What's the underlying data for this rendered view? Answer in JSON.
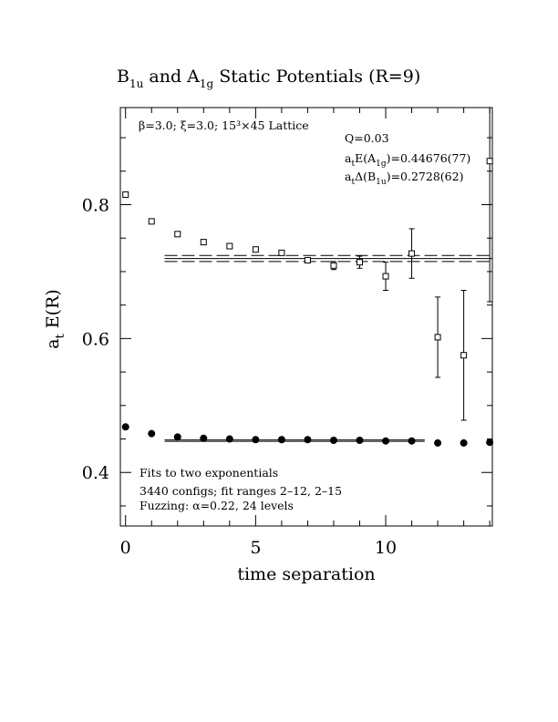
{
  "chart_data": {
    "type": "scatter",
    "title": {
      "main1": "B",
      "sub1": "1u",
      "main2": " and A",
      "sub2": "1g",
      "main3": " Static Potentials (R=9)"
    },
    "xlabel": "time separation",
    "ylabel": {
      "main": "a",
      "sub": "t",
      "rest": " E(R)"
    },
    "xlim": [
      -0.2,
      14.1
    ],
    "ylim": [
      0.32,
      0.945
    ],
    "x_ticks": [
      0,
      5,
      10
    ],
    "y_ticks": [
      0.4,
      0.6,
      0.8
    ],
    "annotations": {
      "lattice": "β=3.0; ξ=3.0; 15³×45 Lattice",
      "q": "Q=0.03",
      "energy_a": "a",
      "energy_sub_t": "t",
      "energy_mid": "E(A",
      "energy_sub_1g": "1g",
      "energy_val": ")=0.44676(77)",
      "delta_a": "a",
      "delta_sub_t": "t",
      "delta_mid": "Δ(B",
      "delta_sub_1u": "1u",
      "delta_val": ")=0.2728(62)",
      "fits": "Fits to two exponentials",
      "configs": "3440 configs; fit ranges 2–12, 2–15",
      "fuzzing": "Fuzzing: α=0.22, 24 levels"
    },
    "series": [
      {
        "marker": "open-square",
        "points": [
          {
            "x": 0,
            "y": 0.815,
            "err": 0.002
          },
          {
            "x": 1,
            "y": 0.775,
            "err": 0.002
          },
          {
            "x": 2,
            "y": 0.756,
            "err": 0.002
          },
          {
            "x": 3,
            "y": 0.744,
            "err": 0.002
          },
          {
            "x": 4,
            "y": 0.738,
            "err": 0.003
          },
          {
            "x": 5,
            "y": 0.733,
            "err": 0.003
          },
          {
            "x": 6,
            "y": 0.728,
            "err": 0.003
          },
          {
            "x": 7,
            "y": 0.717,
            "err": 0.004
          },
          {
            "x": 8,
            "y": 0.709,
            "err": 0.006
          },
          {
            "x": 9,
            "y": 0.714,
            "err": 0.009
          },
          {
            "x": 10,
            "y": 0.693,
            "err": 0.021
          },
          {
            "x": 11,
            "y": 0.727,
            "err": 0.037
          },
          {
            "x": 12,
            "y": 0.602,
            "err": 0.06
          },
          {
            "x": 13,
            "y": 0.575,
            "err": 0.097
          },
          {
            "x": 14,
            "y": 0.865,
            "err": 0.21
          }
        ]
      },
      {
        "marker": "filled-circle",
        "points": [
          {
            "x": 0,
            "y": 0.468
          },
          {
            "x": 1,
            "y": 0.458
          },
          {
            "x": 2,
            "y": 0.453
          },
          {
            "x": 3,
            "y": 0.451
          },
          {
            "x": 4,
            "y": 0.45
          },
          {
            "x": 5,
            "y": 0.449
          },
          {
            "x": 6,
            "y": 0.449
          },
          {
            "x": 7,
            "y": 0.449
          },
          {
            "x": 8,
            "y": 0.448
          },
          {
            "x": 9,
            "y": 0.448
          },
          {
            "x": 10,
            "y": 0.447
          },
          {
            "x": 11,
            "y": 0.447
          },
          {
            "x": 12,
            "y": 0.444
          },
          {
            "x": 13,
            "y": 0.444
          },
          {
            "x": 14,
            "y": 0.445
          }
        ]
      }
    ],
    "fit_lines": [
      {
        "x": [
          1.5,
          14.1
        ],
        "y": 0.724,
        "style": "dashed"
      },
      {
        "x": [
          1.5,
          14.1
        ],
        "y": 0.7195,
        "style": "solid"
      },
      {
        "x": [
          1.5,
          14.1
        ],
        "y": 0.715,
        "style": "dashed"
      },
      {
        "x": [
          1.5,
          11.5
        ],
        "y": 0.4485,
        "style": "solid"
      },
      {
        "x": [
          1.5,
          11.5
        ],
        "y": 0.4465,
        "style": "solid"
      }
    ]
  }
}
